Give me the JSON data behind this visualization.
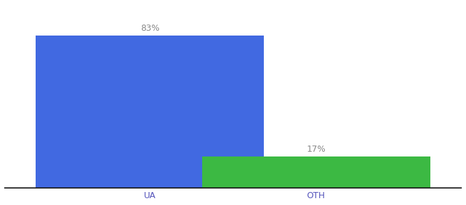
{
  "categories": [
    "UA",
    "OTH"
  ],
  "values": [
    83,
    17
  ],
  "bar_colors": [
    "#4169E1",
    "#3CB943"
  ],
  "labels": [
    "83%",
    "17%"
  ],
  "ylim": [
    0,
    100
  ],
  "background_color": "#ffffff",
  "label_color": "#888888",
  "tick_color": "#5555bb",
  "bar_width": 0.55,
  "label_fontsize": 9,
  "tick_fontsize": 9,
  "x_positions": [
    0.35,
    0.75
  ]
}
